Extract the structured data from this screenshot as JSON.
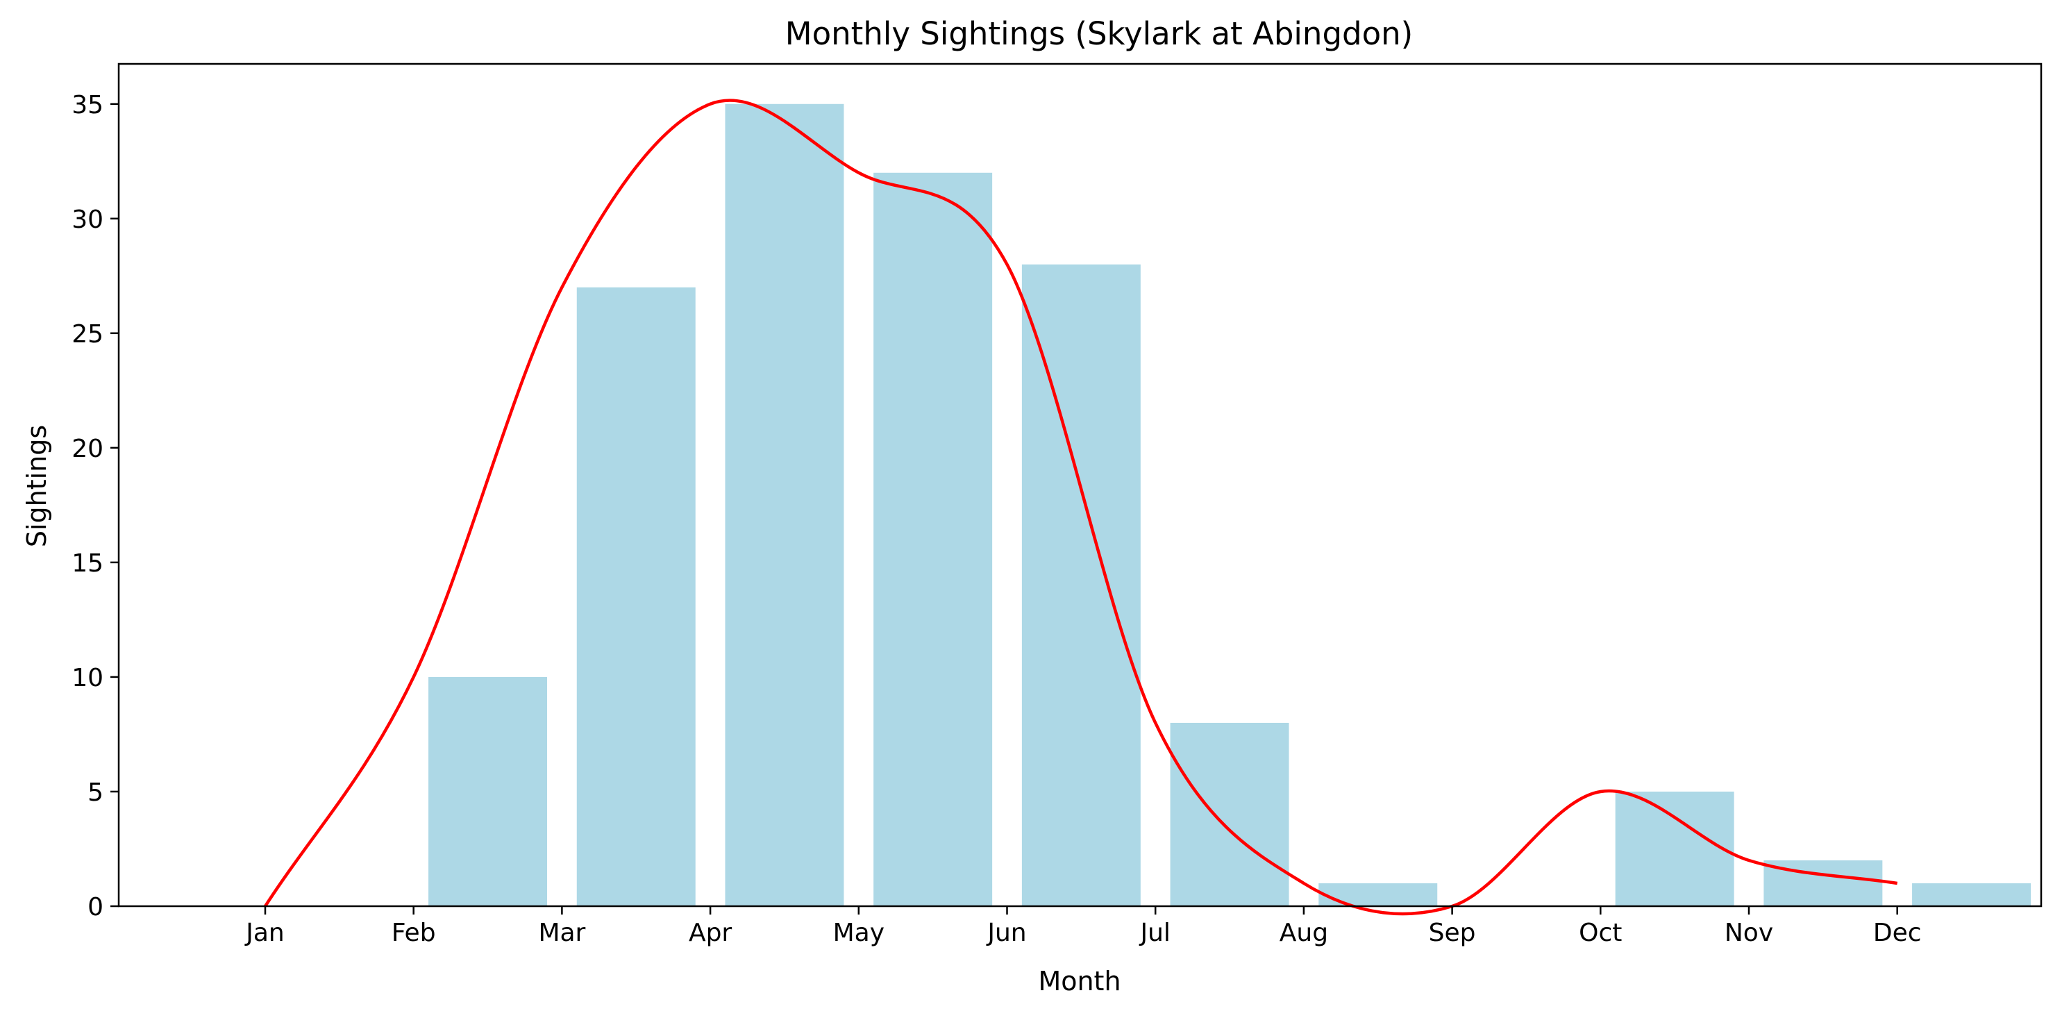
{
  "chart_data": {
    "type": "bar",
    "title": "Monthly Sightings (Skylark at Abingdon)",
    "xlabel": "Month",
    "ylabel": "Sightings",
    "categories": [
      "Jan",
      "Feb",
      "Mar",
      "Apr",
      "May",
      "Jun",
      "Jul",
      "Aug",
      "Sep",
      "Oct",
      "Nov",
      "Dec"
    ],
    "series": [
      {
        "type": "bar",
        "values": [
          0,
          10,
          27,
          35,
          32,
          28,
          8,
          1,
          0,
          5,
          2,
          1
        ]
      },
      {
        "type": "line",
        "values": [
          0,
          10,
          27,
          35,
          32,
          28,
          8,
          1,
          0,
          5,
          2,
          1
        ]
      }
    ],
    "ylim": [
      0,
      36.75
    ],
    "yticks": [
      0,
      5,
      10,
      15,
      20,
      25,
      30,
      35
    ],
    "grid": false,
    "legend": "none",
    "colors": {
      "bar": "#add8e6",
      "line": "#ff0000"
    }
  }
}
